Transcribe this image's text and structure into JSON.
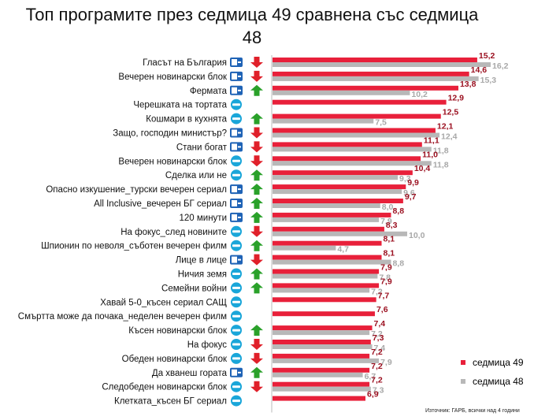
{
  "title": "Топ програмите през седмица 49 сравнена със седмица 48",
  "source": "Източник: ГАРБ, всички над 4 години",
  "colors": {
    "week49": "#e8203a",
    "week48": "#b8b8b8",
    "label49": "#9b1020",
    "label48": "#a8a8a8",
    "up": "#2aa12a",
    "down": "#e0202a"
  },
  "chart_data": {
    "type": "bar",
    "orientation": "horizontal",
    "xlim": [
      0,
      16.5
    ],
    "categories": [
      "Гласът на България",
      "Вечерен новинарски блок",
      "Фермата",
      "Черешката на тортата",
      "Кошмари в кухнята",
      "Защо, господин министър?",
      "Стани богат",
      "Вечерен новинарски блок",
      "Сделка или не",
      "Опасно изкушение_турски вечерен сериал",
      "All Inclusive_вечерен БГ сериал",
      "120 минути",
      "На фокус_след новините",
      "Шпионин по неволя_съботен вечерен филм",
      "Лице в лице",
      "Ничия земя",
      "Семейни войни",
      "Хавай 5-0_късен сериал САЩ",
      "Смъртта може да почака_неделен вечерен филм",
      "Късен новинарски блок",
      "На фокус",
      "Обеден новинарски блок",
      "Да хванеш гората",
      "Следобеден новинарски блок",
      "Клетката_късен БГ сериал"
    ],
    "channels": [
      "btv",
      "btv",
      "btv",
      "nova",
      "nova",
      "btv",
      "btv",
      "nova",
      "nova",
      "btv",
      "btv",
      "btv",
      "nova",
      "nova",
      "btv",
      "nova",
      "nova",
      "nova",
      "nova",
      "nova",
      "nova",
      "nova",
      "btv",
      "nova",
      "nova"
    ],
    "trends": [
      "down",
      "down",
      "up",
      "none",
      "up",
      "down",
      "down",
      "down",
      "up",
      "up",
      "up",
      "up",
      "down",
      "up",
      "down",
      "up",
      "up",
      "none",
      "none",
      "up",
      "down",
      "down",
      "up",
      "down",
      "none"
    ],
    "series": [
      {
        "name": "седмица 49",
        "values": [
          15.2,
          14.6,
          13.8,
          12.9,
          12.5,
          12.1,
          11.1,
          11.0,
          10.4,
          9.9,
          9.7,
          8.8,
          8.3,
          8.1,
          8.1,
          7.9,
          7.9,
          7.7,
          7.6,
          7.4,
          7.3,
          7.2,
          7.2,
          7.2,
          6.9
        ],
        "labels": [
          "15,2",
          "14,6",
          "13,8",
          "12,9",
          "12,5",
          "12,1",
          "11,1",
          "11,0",
          "10,4",
          "9,9",
          "9,7",
          "8,8",
          "8,3",
          "8,1",
          "8,1",
          "7,9",
          "7,9",
          "7,7",
          "7,6",
          "7,4",
          "7,3",
          "7,2",
          "7,2",
          "7,2",
          "6,9"
        ]
      },
      {
        "name": "седмица 48",
        "values": [
          16.2,
          15.3,
          10.2,
          null,
          7.5,
          12.4,
          11.8,
          11.8,
          9.3,
          9.6,
          8.0,
          7.9,
          10.0,
          4.7,
          8.8,
          7.8,
          7.2,
          null,
          null,
          7.2,
          7.4,
          7.9,
          6.7,
          7.3,
          null
        ],
        "labels": [
          "16,2",
          "15,3",
          "10,2",
          "",
          "7,5",
          "12,4",
          "11,8",
          "11,8",
          "9,3",
          "9,6",
          "8,0",
          "7,9",
          "10,0",
          "4,7",
          "8,8",
          "7,8",
          "7,2",
          "",
          "",
          "7,2",
          "7,4",
          "7,9",
          "6,7",
          "7,3",
          ""
        ]
      }
    ],
    "grid": false,
    "legend_position": "bottom-right"
  }
}
